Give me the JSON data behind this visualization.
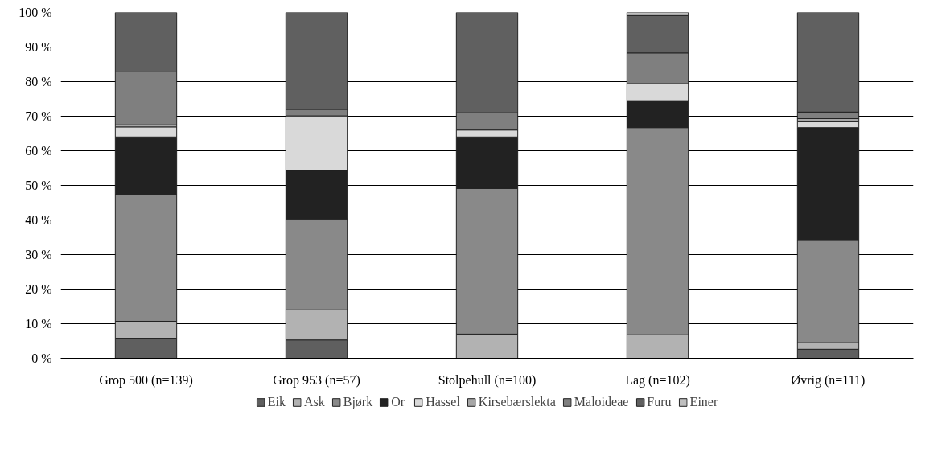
{
  "chart_data": {
    "type": "bar",
    "stacked": true,
    "categories": [
      "Grop 500 (n=139)",
      "Grop 953 (n=57)",
      "Stolpehull (n=100)",
      "Lag (n=102)",
      "Øvrig (n=111)"
    ],
    "series": [
      {
        "name": "Eik",
        "color": "#5f5f5f",
        "values": [
          5.8,
          5.3,
          0,
          0,
          2.6
        ]
      },
      {
        "name": "Ask",
        "color": "#b2b2b2",
        "values": [
          4.9,
          8.7,
          7.0,
          6.8,
          1.9
        ]
      },
      {
        "name": "Bjørk",
        "color": "#898989",
        "values": [
          36.7,
          26.3,
          42.1,
          59.9,
          29.6
        ]
      },
      {
        "name": "Or",
        "color": "#222222",
        "values": [
          16.6,
          14.1,
          14.9,
          7.8,
          32.6
        ]
      },
      {
        "name": "Hassel",
        "color": "#d9d9d9",
        "values": [
          2.9,
          15.7,
          2.0,
          4.9,
          1.7
        ]
      },
      {
        "name": "Kirsebærslekta",
        "color": "#a6a6a6",
        "values": [
          0.6,
          0,
          0,
          0,
          0.9
        ]
      },
      {
        "name": "Maloideae",
        "color": "#7f7f7f",
        "values": [
          15.3,
          1.9,
          5.0,
          8.9,
          1.9
        ]
      },
      {
        "name": "Furu",
        "color": "#606060",
        "values": [
          17.2,
          28.0,
          29.0,
          10.8,
          28.8
        ]
      },
      {
        "name": "Einer",
        "color": "#bfbfbf",
        "values": [
          0,
          0,
          0,
          0.9,
          0
        ]
      }
    ],
    "ylim": [
      0,
      100
    ],
    "yticks": [
      {
        "value": 0,
        "label": "0 %"
      },
      {
        "value": 10,
        "label": "10 %"
      },
      {
        "value": 20,
        "label": "20 %"
      },
      {
        "value": 30,
        "label": "30 %"
      },
      {
        "value": 40,
        "label": "40 %"
      },
      {
        "value": 50,
        "label": "50 %"
      },
      {
        "value": 60,
        "label": "60 %"
      },
      {
        "value": 70,
        "label": "70 %"
      },
      {
        "value": 80,
        "label": "80 %"
      },
      {
        "value": 90,
        "label": "90 %"
      },
      {
        "value": 100,
        "label": "100 %"
      }
    ],
    "grid": "y",
    "legend": "bottom"
  }
}
